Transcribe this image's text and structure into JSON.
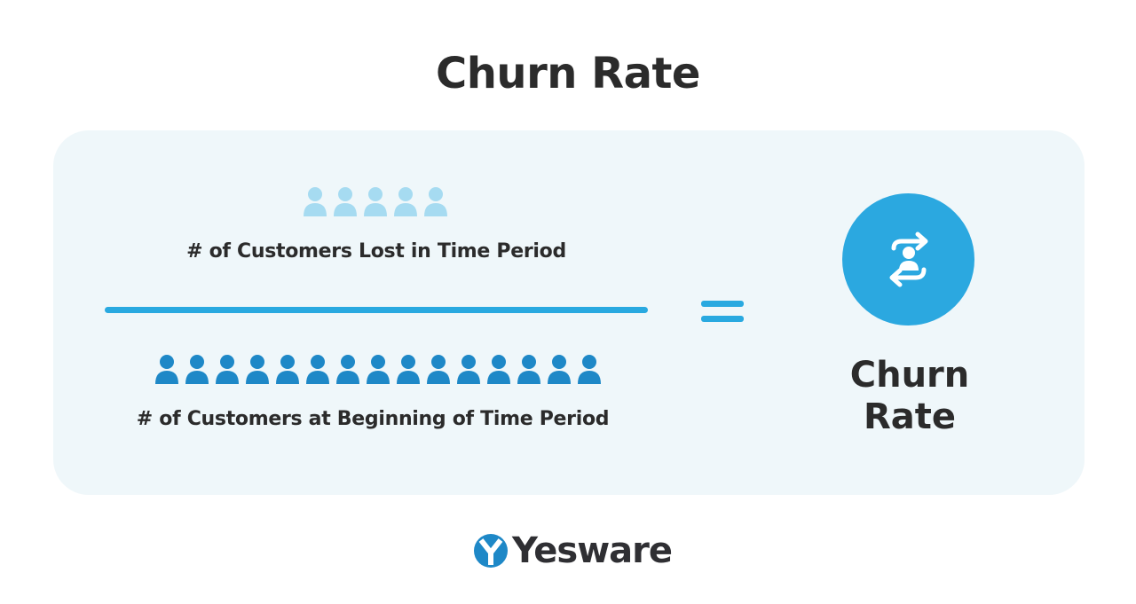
{
  "title": "Churn Rate",
  "formula": {
    "numerator": {
      "label": "# of Customers Lost in Time Period",
      "icon_count": 5,
      "icon": "person-icon",
      "color": "#a6dbf1"
    },
    "denominator": {
      "label": "# of Customers at Beginning of Time Period",
      "icon_count": 15,
      "icon": "person-icon",
      "color": "#1e88c7"
    },
    "operator": "=",
    "result": {
      "line1": "Churn",
      "line2": "Rate",
      "icon": "customer-exchange-icon"
    }
  },
  "colors": {
    "accent": "#29a9e0",
    "card_bg": "#eff7fa",
    "text": "#2b2b2b"
  },
  "logo": {
    "text": "Yesware"
  }
}
